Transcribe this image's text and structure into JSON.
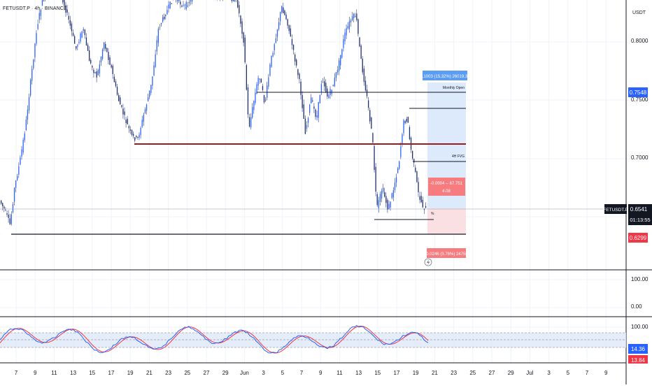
{
  "header": {
    "title": "FETUSDT.P · 4h · BINANCE"
  },
  "price_axis": {
    "currency": "USDT",
    "ticks": [
      "0.8000",
      "0.7500",
      "0.7000"
    ],
    "current_symbol": "FETUSDT.P",
    "current_price": "0.6541",
    "countdown": "01:13:55",
    "upper_label": "0.7548",
    "lower_label": "0.6299"
  },
  "indicator1_axis": {
    "ticks": [
      "100.00",
      "0.00"
    ]
  },
  "indicator2_axis": {
    "ticks": [
      "100.00"
    ],
    "value": "14.36",
    "value_cut": "13.84"
  },
  "time_axis": {
    "labels": [
      "7",
      "9",
      "11",
      "13",
      "15",
      "17",
      "19",
      "21",
      "23",
      "25",
      "27",
      "29",
      "Jun",
      "3",
      "5",
      "7",
      "9",
      "11",
      "13",
      "15",
      "17",
      "19",
      "21",
      "23",
      "25",
      "27",
      "29",
      "Jul",
      "3",
      "5",
      "7",
      "9"
    ]
  },
  "annotations": {
    "target_box": "0.1003 (15.32%) 26019.31",
    "monthly_open": "Monthly Open",
    "fvg": "4H FVG",
    "entry_line1": "-0.0004 -- 67.751",
    "entry_line2": "4.08",
    "stop_box": "-0.0246 (3.76%) 24750",
    "entry_marker": "%"
  },
  "colors": {
    "up": "#2962ff",
    "down": "#2962ff",
    "red_level": "#9b1c1c",
    "target_fill": "#d6e6fb",
    "stop_fill": "#fbdde0",
    "label_blue": "#2962ff",
    "label_red": "#f23645",
    "target_label": "#5b9cf5",
    "stop_label": "#f77c80",
    "stoch_k": "#2962ff",
    "stoch_d": "#f23645"
  }
}
